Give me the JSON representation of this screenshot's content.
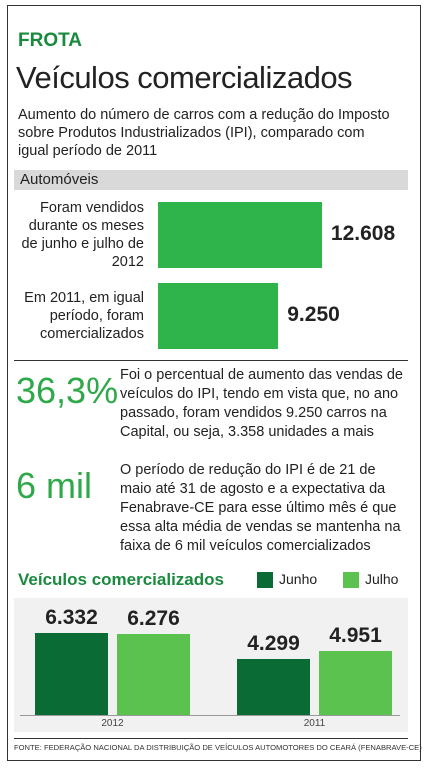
{
  "header": {
    "kicker": "FROTA",
    "title": "Veículos comercializados",
    "subtitle": "Aumento do número de carros com a redução do Imposto sobre Produtos Industrializados (IPI), comparado com igual período de 2011"
  },
  "chart_data": [
    {
      "type": "hbar",
      "title": "Automóveis",
      "categories": [
        "Foram vendidos durante os meses de junho e julho de 2012",
        "Em 2011, em igual período, foram comercializados"
      ],
      "values": [
        12608,
        9250
      ],
      "value_labels": [
        "12.608",
        "9.250"
      ],
      "color": "#2fb34b"
    },
    {
      "type": "bar",
      "title": "Veículos comercializados",
      "categories": [
        "2012",
        "2011"
      ],
      "series": [
        {
          "name": "Junho",
          "color": "#0b6b35",
          "values": [
            6332,
            4299
          ],
          "value_labels": [
            "6.332",
            "4.299"
          ]
        },
        {
          "name": "Julho",
          "color": "#5cc24f",
          "values": [
            6276,
            4951
          ],
          "value_labels": [
            "6.276",
            "4.951"
          ]
        }
      ]
    }
  ],
  "stats": [
    {
      "figure": "36,3%",
      "text": "Foi o percentual de aumento das vendas de veículos do IPI, tendo em vista que, no ano passado, foram vendidos 9.250 carros na Capital, ou seja, 3.358 unidades a mais"
    },
    {
      "figure": "6 mil",
      "text": "O período de redução do IPI é de 21 de maio até 31 de agosto e a expectativa da Fenabrave-CE para esse último mês é que essa alta média de vendas se mantenha na faixa de 6 mil veículos comercializados"
    }
  ],
  "source": "FONTE: FEDERAÇÃO NACIONAL DA DISTRIBUIÇÃO DE VEÍCULOS AUTOMOTORES DO CEARÁ (FENABRAVE-CE)"
}
